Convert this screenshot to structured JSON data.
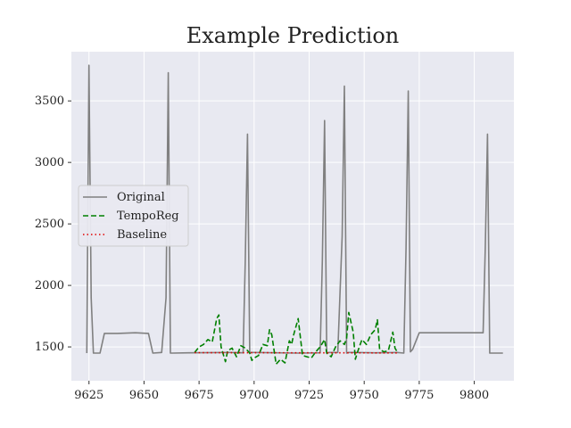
{
  "chart_data": {
    "type": "line",
    "title": "Example Prediction",
    "xlabel": "",
    "ylabel": "",
    "xlim": [
      9617,
      9818
    ],
    "ylim": [
      1225,
      3900
    ],
    "xticks": [
      9625,
      9650,
      9675,
      9700,
      9725,
      9750,
      9775,
      9800
    ],
    "yticks": [
      1500,
      2000,
      2500,
      3000,
      3500
    ],
    "grid": true,
    "legend_position": "center-left",
    "background_color": "#e8e9f1",
    "series": [
      {
        "name": "Original",
        "color": "#808080",
        "style": "solid",
        "x": [
          9624,
          9625,
          9626,
          9627,
          9630,
          9632,
          9638,
          9646,
          9652,
          9654,
          9658,
          9660,
          9661,
          9662,
          9663,
          9670,
          9690,
          9695,
          9696,
          9697,
          9698,
          9700,
          9720,
          9730,
          9731,
          9732,
          9733,
          9734,
          9738,
          9740,
          9741,
          9742,
          9743,
          9746,
          9755,
          9765,
          9768,
          9769,
          9770,
          9771,
          9772,
          9775,
          9795,
          9803,
          9804,
          9805,
          9806,
          9807,
          9813
        ],
        "y": [
          1450,
          3790,
          1900,
          1450,
          1450,
          1610,
          1610,
          1615,
          1610,
          1450,
          1455,
          1900,
          3730,
          1450,
          1450,
          1452,
          1455,
          1452,
          2200,
          3230,
          1455,
          1455,
          1450,
          1452,
          2200,
          3340,
          1450,
          1455,
          1455,
          2400,
          3620,
          1450,
          1455,
          1455,
          1452,
          1455,
          1450,
          2300,
          3580,
          1460,
          1480,
          1615,
          1615,
          1615,
          1615,
          2300,
          3230,
          1450,
          1450
        ]
      },
      {
        "name": "TempoReg",
        "color": "#008000",
        "style": "dashed",
        "x": [
          9673,
          9675,
          9677,
          9679,
          9681,
          9683,
          9684,
          9685,
          9687,
          9688,
          9690,
          9692,
          9694,
          9696,
          9698,
          9699,
          9700,
          9702,
          9704,
          9706,
          9707,
          9708,
          9710,
          9712,
          9714,
          9716,
          9717,
          9718,
          9720,
          9722,
          9724,
          9726,
          9728,
          9730,
          9732,
          9733,
          9735,
          9737,
          9739,
          9741,
          9742,
          9743,
          9745,
          9746,
          9747,
          9749,
          9751,
          9753,
          9755,
          9756,
          9757,
          9759,
          9761,
          9763,
          9764,
          9765
        ],
        "y": [
          1455,
          1500,
          1520,
          1560,
          1540,
          1730,
          1760,
          1500,
          1380,
          1470,
          1490,
          1420,
          1510,
          1490,
          1450,
          1390,
          1410,
          1430,
          1520,
          1510,
          1640,
          1600,
          1360,
          1400,
          1370,
          1550,
          1520,
          1600,
          1730,
          1430,
          1420,
          1410,
          1460,
          1500,
          1560,
          1450,
          1420,
          1500,
          1550,
          1520,
          1570,
          1780,
          1620,
          1400,
          1460,
          1560,
          1520,
          1600,
          1640,
          1720,
          1480,
          1460,
          1470,
          1620,
          1490,
          1460
        ]
      },
      {
        "name": "Baseline",
        "color": "#e00000",
        "style": "dotted",
        "x": [
          9673,
          9765
        ],
        "y": [
          1453,
          1451
        ]
      }
    ]
  }
}
